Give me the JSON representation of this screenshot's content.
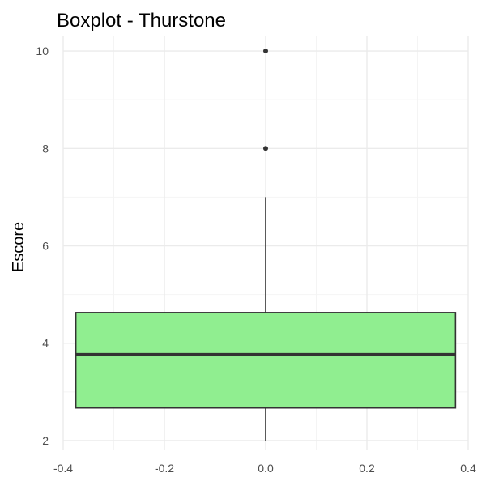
{
  "chart_data": {
    "type": "boxplot",
    "title": "Boxplot - Thurstone",
    "xlabel": "",
    "ylabel": "Escore",
    "xlim": [
      -0.4,
      0.4
    ],
    "ylim": [
      1.8,
      10.3
    ],
    "x_ticks": [
      -0.4,
      -0.2,
      0.0,
      0.2,
      0.4
    ],
    "x_tick_labels": [
      "-0.4",
      "-0.2",
      "0.0",
      "0.2",
      "0.4"
    ],
    "y_ticks": [
      2,
      4,
      6,
      8,
      10
    ],
    "y_tick_labels": [
      "2",
      "4",
      "6",
      "8",
      "10"
    ],
    "grid": true,
    "box": {
      "x": 0.0,
      "half_width": 0.375,
      "whisker_low": 2.0,
      "q1": 2.67,
      "median": 3.77,
      "q3": 4.63,
      "whisker_high": 7.0,
      "outliers": [
        8,
        10
      ]
    },
    "colors": {
      "box_fill": "#90ee90",
      "box_stroke": "#333333",
      "grid_major": "#ebebeb",
      "grid_minor": "#f4f4f4",
      "tick_text": "#4d4d4d"
    }
  }
}
